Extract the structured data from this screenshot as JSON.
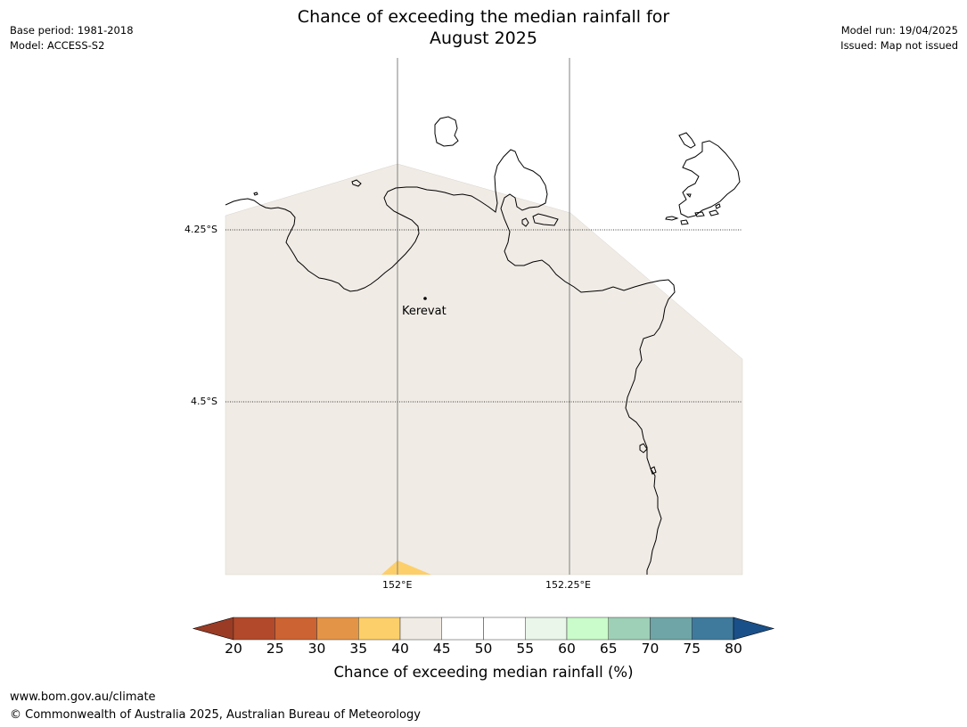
{
  "header": {
    "title_line1": "Chance of exceeding the median rainfall for",
    "title_line2": "August 2025",
    "base_period": "Base period: 1981-2018",
    "model": "Model: ACCESS-S2",
    "model_run": "Model run: 19/04/2025",
    "issued": "Issued: Map not issued"
  },
  "map": {
    "lat_labels": [
      "4.25°S",
      "4.5°S"
    ],
    "lon_labels": [
      "152°E",
      "152.25°E"
    ],
    "place": {
      "name": "Kerevat"
    },
    "fill_colors": {
      "land": "#f0ebe5",
      "low_35_40": "#fdcf6a",
      "coastline": "#000000",
      "gridline": "#808080"
    }
  },
  "colorbar": {
    "labels": [
      "20",
      "25",
      "30",
      "35",
      "40",
      "45",
      "50",
      "55",
      "60",
      "65",
      "70",
      "75",
      "80"
    ],
    "colors": [
      "#b2492a",
      "#cc6332",
      "#e49447",
      "#fdcf6a",
      "#f1ebe5",
      "#ffffff",
      "#ffffff",
      "#eaf6ea",
      "#cafbca",
      "#9ecfb7",
      "#6fa5a6",
      "#3f7a9c"
    ],
    "under_color": "#9a3b25",
    "over_color": "#1a5089",
    "title": "Chance of exceeding median rainfall (%)"
  },
  "footer": {
    "url": "www.bom.gov.au/climate",
    "copyright": "© Commonwealth of Australia 2025, Australian Bureau of Meteorology"
  }
}
